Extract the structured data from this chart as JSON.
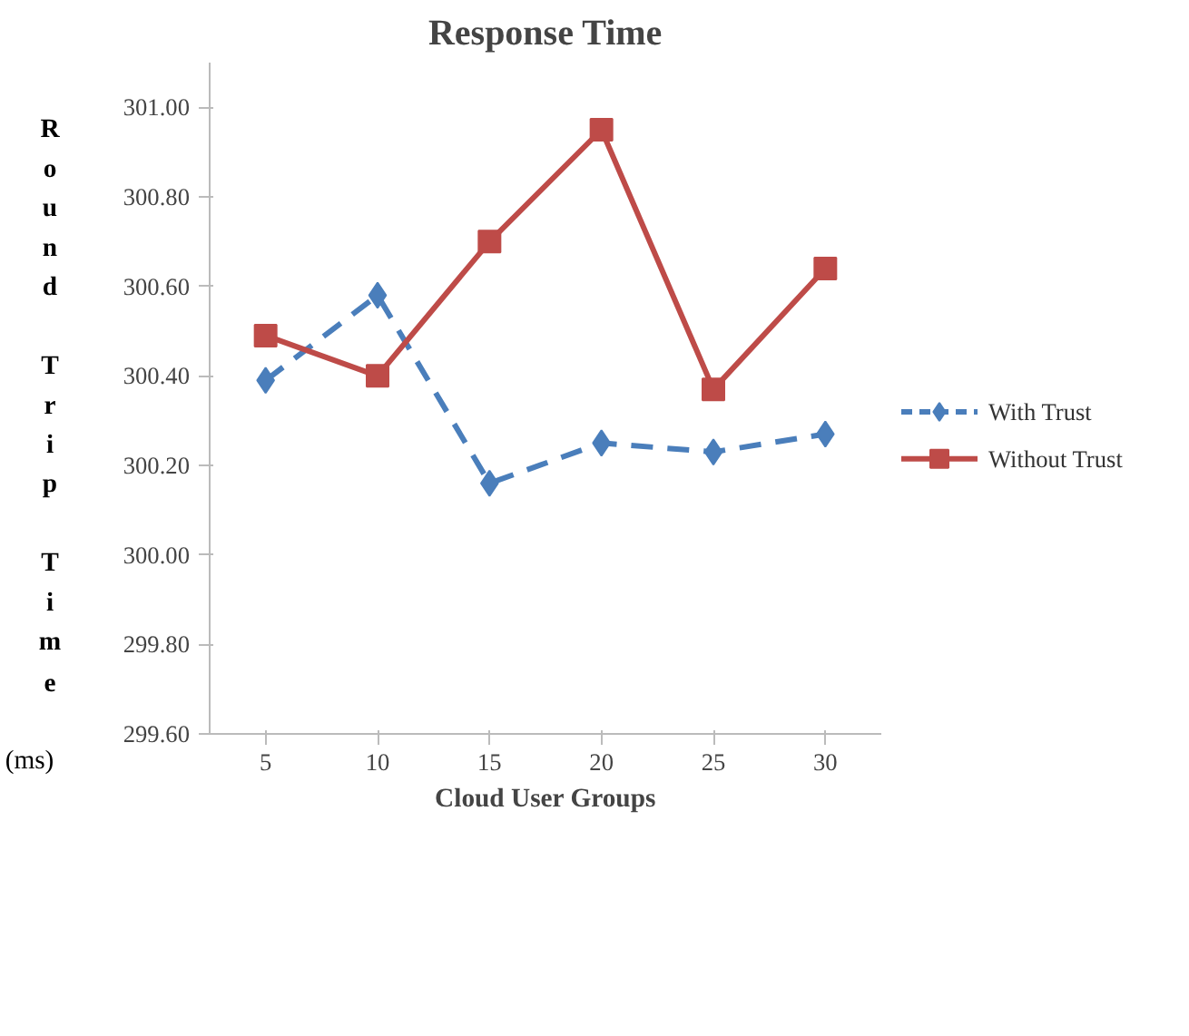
{
  "chart_data": {
    "type": "line",
    "title": "Response Time",
    "xlabel": "Cloud User Groups",
    "ylabel": "Round Trip Time (ms)",
    "categories": [
      "5",
      "10",
      "15",
      "20",
      "25",
      "30"
    ],
    "ylim": [
      299.6,
      301.1
    ],
    "yticks": [
      {
        "value": 299.6,
        "label": "299.60"
      },
      {
        "value": 299.8,
        "label": "299.80"
      },
      {
        "value": 300.0,
        "label": "300.00"
      },
      {
        "value": 300.2,
        "label": "300.20"
      },
      {
        "value": 300.4,
        "label": "300.40"
      },
      {
        "value": 300.6,
        "label": "300.60"
      },
      {
        "value": 300.8,
        "label": "300.80"
      },
      {
        "value": 301.0,
        "label": "301.00"
      }
    ],
    "grid": false,
    "legend": "right",
    "series": [
      {
        "name": "With Trust",
        "color": "#4a7ebb",
        "marker": "diamond",
        "line_style": "dashed",
        "values": [
          300.39,
          300.58,
          300.16,
          300.25,
          300.23,
          300.27
        ]
      },
      {
        "name": "Without Trust",
        "color": "#be4b48",
        "marker": "square",
        "line_style": "solid",
        "values": [
          300.49,
          300.4,
          300.7,
          300.95,
          300.37,
          300.64
        ]
      }
    ]
  }
}
